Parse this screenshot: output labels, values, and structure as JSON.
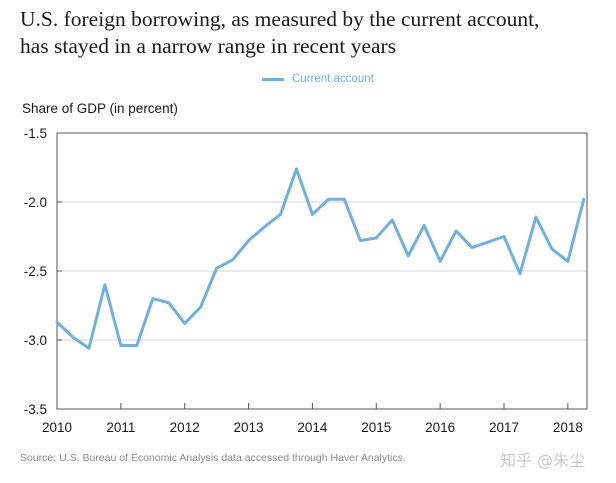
{
  "title_lines": [
    "U.S. foreign borrowing, as measured by the current account,",
    "has stayed in a narrow range in recent years"
  ],
  "legend": {
    "label": "Current account",
    "color": "#6fb0e0"
  },
  "source": "Source: U.S. Bureau of Economic Analysis data accessed through Haver Analytics.",
  "watermark": "知乎 @朱尘",
  "chart_data": {
    "type": "line",
    "title": "U.S. foreign borrowing, as measured by the current account, has stayed in a narrow range in recent years",
    "ylabel": "Share of GDP (in percent)",
    "xlabel": "",
    "xlim": [
      2010,
      2018.3
    ],
    "ylim": [
      -3.5,
      -1.5
    ],
    "x_ticks": [
      2010,
      2011,
      2012,
      2013,
      2014,
      2015,
      2016,
      2017,
      2018
    ],
    "x_tick_labels": [
      "2010",
      "2011",
      "2012",
      "2013",
      "2014",
      "2015",
      "2016",
      "2017",
      "2018"
    ],
    "y_ticks": [
      -1.5,
      -2.0,
      -2.5,
      -3.0,
      -3.5
    ],
    "y_tick_labels": [
      "-1.5",
      "-2.0",
      "-2.5",
      "-3.0",
      "-3.5"
    ],
    "grid": {
      "horizontal": true,
      "vertical": false
    },
    "legend_position": "top-center",
    "series": [
      {
        "name": "Current account",
        "color": "#6fb0e0",
        "x": [
          2010.0,
          2010.25,
          2010.5,
          2010.75,
          2011.0,
          2011.25,
          2011.5,
          2011.75,
          2012.0,
          2012.25,
          2012.5,
          2012.75,
          2013.0,
          2013.25,
          2013.5,
          2013.75,
          2014.0,
          2014.25,
          2014.5,
          2014.75,
          2015.0,
          2015.25,
          2015.5,
          2015.75,
          2016.0,
          2016.25,
          2016.5,
          2016.75,
          2017.0,
          2017.25,
          2017.5,
          2017.75,
          2018.0,
          2018.25
        ],
        "y": [
          -2.87,
          -2.98,
          -3.06,
          -2.6,
          -3.04,
          -3.04,
          -2.7,
          -2.73,
          -2.88,
          -2.76,
          -2.48,
          -2.42,
          -2.28,
          -2.18,
          -2.09,
          -1.76,
          -2.09,
          -1.98,
          -1.98,
          -2.28,
          -2.26,
          -2.13,
          -2.39,
          -2.17,
          -2.43,
          -2.21,
          -2.33,
          -2.29,
          -2.25,
          -2.52,
          -2.11,
          -2.34,
          -2.43,
          -1.98
        ]
      }
    ]
  }
}
